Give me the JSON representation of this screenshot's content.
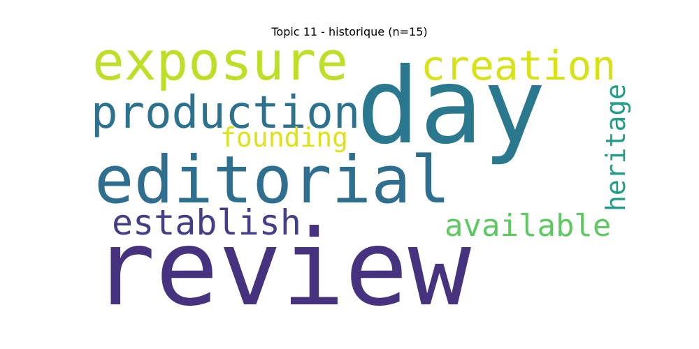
{
  "title": "Topic 11 - historique (n=15)",
  "words": {
    "review": {
      "text": "review",
      "color": "#46327e"
    },
    "day": {
      "text": "day",
      "color": "#2a788e"
    },
    "editorial": {
      "text": "editorial",
      "color": "#2e6e8e"
    },
    "exposure": {
      "text": "exposure",
      "color": "#bddf26"
    },
    "production": {
      "text": "production",
      "color": "#2c728e"
    },
    "creation": {
      "text": "creation",
      "color": "#d8e219"
    },
    "establish": {
      "text": "establish",
      "color": "#433e85"
    },
    "available": {
      "text": "available",
      "color": "#5ec962"
    },
    "founding": {
      "text": "founding",
      "color": "#dde318"
    },
    "heritage": {
      "text": "heritage",
      "color": "#1f9e89"
    }
  }
}
